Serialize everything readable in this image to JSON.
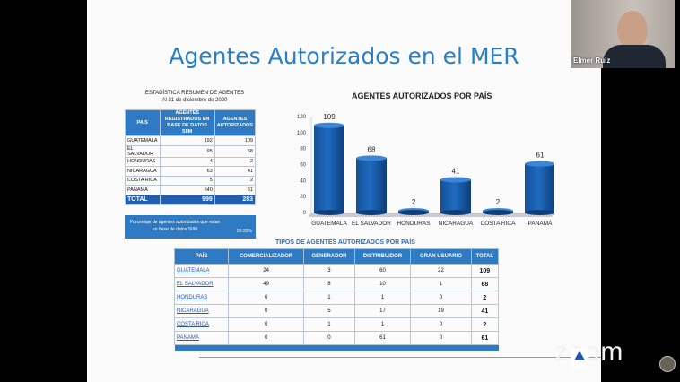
{
  "slide": {
    "title": "Agentes Autorizados en el MER",
    "stats_caption_line1": "ESTADÍSTICA RESUMEN DE  AGENTES",
    "stats_caption_line2": "Al 31 de diciembre de 2020",
    "summary": {
      "headers": [
        "PAÍS",
        "AGENTES REGISTRADOS EN BASE DE DATOS SIIM",
        "AGENTES AUTORIZADOS"
      ],
      "rows": [
        {
          "country": "GUATEMALA",
          "registered": "192",
          "authorized": "109"
        },
        {
          "country": "EL SALVADOR",
          "registered": "95",
          "authorized": "68"
        },
        {
          "country": "HONDURAS",
          "registered": "4",
          "authorized": "2"
        },
        {
          "country": "NICARAGUA",
          "registered": "63",
          "authorized": "41"
        },
        {
          "country": "COSTA RICA",
          "registered": "5",
          "authorized": "2"
        },
        {
          "country": "PANAMÁ",
          "registered": "640",
          "authorized": "61"
        }
      ],
      "total_label": "TOTAL",
      "total_registered": "999",
      "total_authorized": "283"
    },
    "percentage_label": "Porcentaje de agentes autorizados que estan en base de datos SIIM",
    "percentage_value": "28.33%",
    "chart_title": "AGENTES AUTORIZADOS POR PAÍS",
    "types_title": "TIPOS DE AGENTES AUTORIZADOS POR PAÍS",
    "types_table": {
      "headers": [
        "PAÍS",
        "COMERCIALIZADOR",
        "GENERADOR",
        "DISTRIBUIDOR",
        "GRAN USUARIO",
        "TOTAL"
      ],
      "rows": [
        [
          "GUATEMALA",
          "24",
          "3",
          "60",
          "22",
          "109"
        ],
        [
          "EL SALVADOR",
          "49",
          "8",
          "10",
          "1",
          "68"
        ],
        [
          "HONDURAS",
          "0",
          "1",
          "1",
          "0",
          "2"
        ],
        [
          "NICARAGUA",
          "0",
          "5",
          "17",
          "19",
          "41"
        ],
        [
          "COSTA RICA",
          "0",
          "1",
          "1",
          "0",
          "2"
        ],
        [
          "PANAMÁ",
          "0",
          "0",
          "61",
          "0",
          "61"
        ]
      ]
    }
  },
  "chart_data": {
    "type": "bar",
    "title": "AGENTES AUTORIZADOS POR PAÍS",
    "categories": [
      "GUATEMALA",
      "EL SALVADOR",
      "HONDURAS",
      "NICARAGUA",
      "COSTA RICA",
      "PANAMÁ"
    ],
    "values": [
      109,
      68,
      2,
      41,
      2,
      61
    ],
    "yticks": [
      "0",
      "20",
      "40",
      "60",
      "80",
      "100",
      "120"
    ],
    "ylim": [
      0,
      120
    ],
    "bar_color": "#1f6cc2",
    "grid": false
  },
  "video": {
    "participant_name": "Elmer Ruiz",
    "zoom_logo": "zoom"
  }
}
